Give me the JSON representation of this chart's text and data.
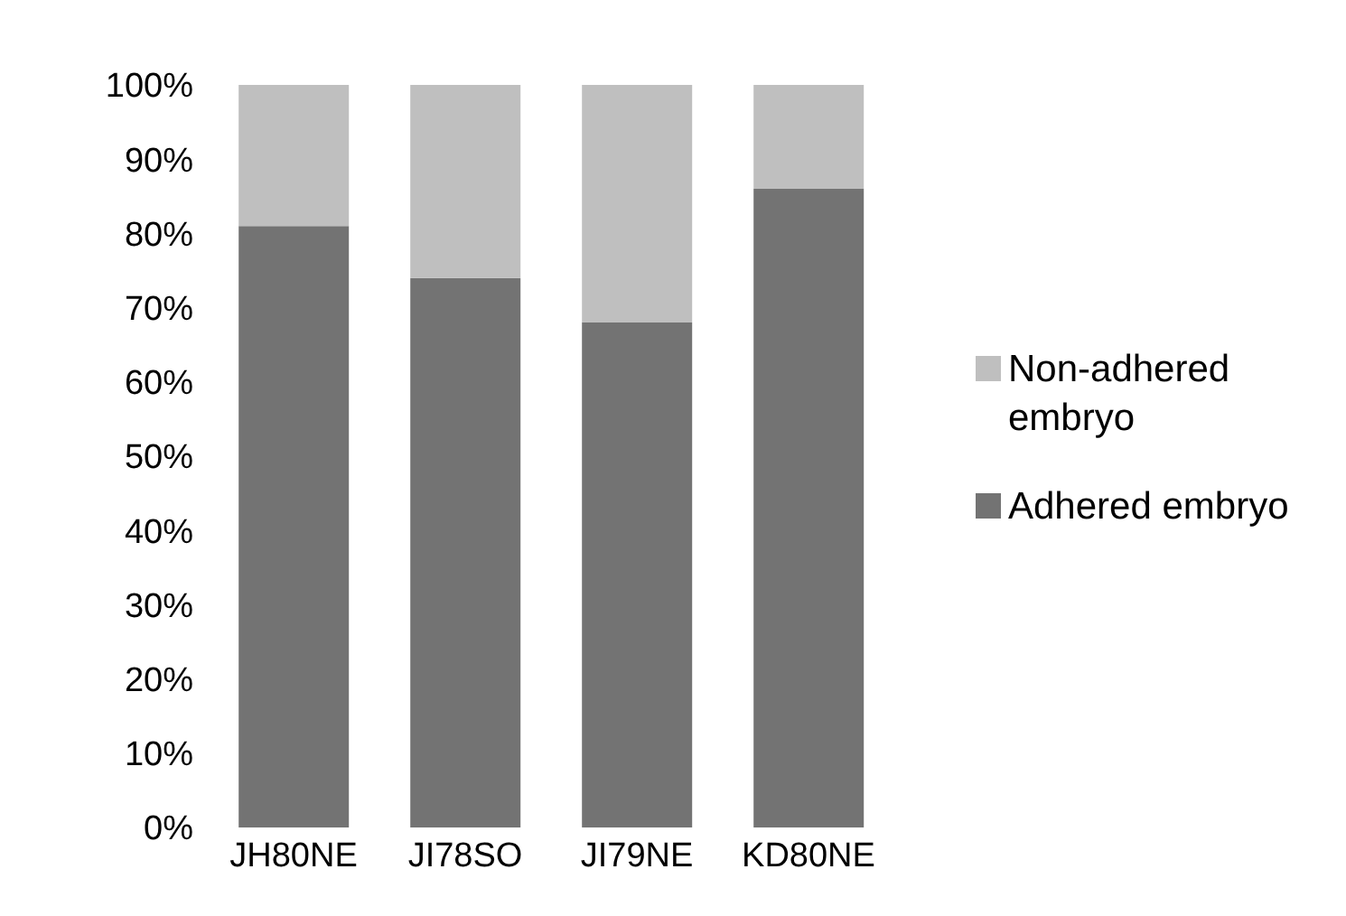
{
  "chart_data": {
    "type": "bar",
    "stacked": true,
    "categories": [
      "JH80NE",
      "JI78SO",
      "JI79NE",
      "KD80NE"
    ],
    "series": [
      {
        "name": "Adhered embryo",
        "color": "#737373",
        "values": [
          81,
          74,
          68,
          86
        ]
      },
      {
        "name": "Non-adhered embryo",
        "color": "#bfbfbf",
        "values": [
          19,
          26,
          32,
          14
        ]
      }
    ],
    "ylim": [
      0,
      100
    ],
    "yticks": [
      {
        "value": 0,
        "label": "0%"
      },
      {
        "value": 10,
        "label": "10%"
      },
      {
        "value": 20,
        "label": "20%"
      },
      {
        "value": 30,
        "label": "30%"
      },
      {
        "value": 40,
        "label": "40%"
      },
      {
        "value": 50,
        "label": "50%"
      },
      {
        "value": 60,
        "label": "60%"
      },
      {
        "value": 70,
        "label": "70%"
      },
      {
        "value": 80,
        "label": "80%"
      },
      {
        "value": 90,
        "label": "90%"
      },
      {
        "value": 100,
        "label": "100%"
      }
    ],
    "grid": false,
    "legend": "right"
  }
}
